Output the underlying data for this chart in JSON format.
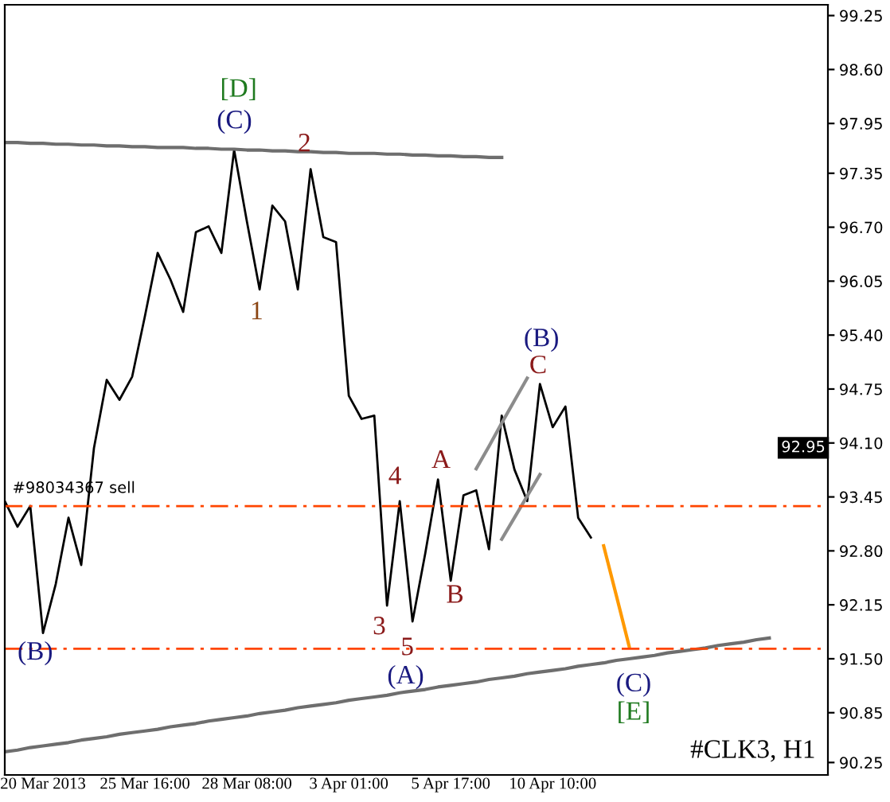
{
  "chart_data": {
    "type": "line",
    "categories": [
      null,
      null,
      null,
      "20 Mar 2013",
      null,
      null,
      null,
      null,
      null,
      null,
      null,
      "25 Mar 16:00",
      null,
      null,
      null,
      null,
      null,
      null,
      null,
      "28 Mar 08:00",
      null,
      null,
      null,
      null,
      null,
      null,
      null,
      "3 Apr 01:00",
      null,
      null,
      null,
      null,
      null,
      null,
      null,
      "5 Apr 17:00",
      null,
      null,
      null,
      null,
      null,
      null,
      null,
      "10 Apr 10:00",
      null,
      null,
      null,
      null,
      null,
      null,
      null,
      null,
      null,
      null,
      null,
      null,
      null,
      null,
      null,
      null,
      null,
      null,
      null,
      null,
      null
    ],
    "ylim": [
      90.1,
      99.38
    ],
    "yticks": [
      {
        "value": 99.25,
        "label": "99.25"
      },
      {
        "value": 98.6,
        "label": "98.60"
      },
      {
        "value": 97.95,
        "label": "97.95"
      },
      {
        "value": 97.35,
        "label": "97.35"
      },
      {
        "value": 96.7,
        "label": "96.70"
      },
      {
        "value": 96.05,
        "label": "96.05"
      },
      {
        "value": 95.4,
        "label": "95.40"
      },
      {
        "value": 94.75,
        "label": "94.75"
      },
      {
        "value": 94.1,
        "label": "94.10"
      },
      {
        "value": 93.45,
        "label": "93.45"
      },
      {
        "value": 92.8,
        "label": "92.80"
      },
      {
        "value": 92.15,
        "label": "92.15"
      },
      {
        "value": 91.5,
        "label": "91.50"
      },
      {
        "value": 90.85,
        "label": "90.85"
      },
      {
        "value": 90.25,
        "label": "90.25"
      }
    ],
    "grid": false,
    "series": [
      {
        "color": "#000000",
        "values": [
          93.4,
          93.09,
          93.34,
          91.81,
          92.4,
          93.2,
          92.63,
          94.04,
          94.86,
          94.62,
          94.9,
          95.63,
          96.39,
          96.07,
          95.68,
          96.64,
          96.71,
          96.39,
          97.63,
          96.77,
          95.95,
          96.96,
          96.77,
          95.95,
          97.4,
          96.58,
          96.52,
          94.67,
          94.39,
          94.43,
          92.14,
          93.4,
          91.95,
          92.77,
          93.66,
          92.44,
          93.47,
          93.53,
          92.82,
          94.43,
          93.78,
          93.4,
          94.81,
          94.29,
          94.54,
          93.2,
          92.96,
          null,
          null,
          null,
          null,
          null,
          null,
          null,
          null,
          null,
          null,
          null,
          null,
          null,
          null,
          null,
          null,
          null,
          null
        ]
      },
      {
        "color": "#6e6e6e",
        "values": [
          97.72,
          97.72,
          97.71,
          97.71,
          97.7,
          97.7,
          97.69,
          97.69,
          97.68,
          97.68,
          97.67,
          97.67,
          97.66,
          97.66,
          97.66,
          97.65,
          97.65,
          97.64,
          97.64,
          97.63,
          97.63,
          97.62,
          97.62,
          97.61,
          97.61,
          97.6,
          97.6,
          97.59,
          97.59,
          97.59,
          97.58,
          97.58,
          97.57,
          97.57,
          97.56,
          97.56,
          97.55,
          97.55,
          97.54,
          97.54,
          null,
          null,
          null,
          null,
          null,
          null,
          null,
          null,
          null,
          null,
          null,
          null,
          null,
          null,
          null,
          null,
          null,
          null,
          null,
          null,
          null,
          null,
          null,
          null,
          null
        ]
      },
      {
        "color": "#6e6e6e",
        "values": [
          90.38,
          90.4,
          90.43,
          90.45,
          90.47,
          90.49,
          90.52,
          90.54,
          90.56,
          90.59,
          90.61,
          90.63,
          90.65,
          90.68,
          90.7,
          90.72,
          90.75,
          90.77,
          90.79,
          90.81,
          90.84,
          90.86,
          90.88,
          90.91,
          90.93,
          90.95,
          90.97,
          91.0,
          91.02,
          91.04,
          91.06,
          91.09,
          91.11,
          91.13,
          91.16,
          91.18,
          91.2,
          91.22,
          91.25,
          91.27,
          91.29,
          91.32,
          91.34,
          91.36,
          91.38,
          91.41,
          91.43,
          91.45,
          91.48,
          91.5,
          91.52,
          91.54,
          91.57,
          91.59,
          91.61,
          91.63,
          91.66,
          91.68,
          91.7,
          91.73,
          91.75,
          null,
          null,
          null,
          null
        ]
      },
      {
        "color": "#8c8c8c",
        "values": [
          null,
          null,
          null,
          null,
          null,
          null,
          null,
          null,
          null,
          null,
          null,
          null,
          null,
          null,
          null,
          null,
          null,
          null,
          null,
          null,
          null,
          null,
          null,
          null,
          null,
          null,
          null,
          null,
          null,
          null,
          null,
          null,
          null,
          null,
          null,
          null,
          null,
          93.79,
          94.06,
          94.34,
          94.61,
          94.88,
          null,
          null,
          null,
          null,
          null,
          null,
          null,
          null,
          null,
          null,
          null,
          null,
          null,
          null,
          null,
          null,
          null,
          null,
          null,
          null,
          null,
          null,
          null
        ]
      },
      {
        "color": "#8c8c8c",
        "values": [
          null,
          null,
          null,
          null,
          null,
          null,
          null,
          null,
          null,
          null,
          null,
          null,
          null,
          null,
          null,
          null,
          null,
          null,
          null,
          null,
          null,
          null,
          null,
          null,
          null,
          null,
          null,
          null,
          null,
          null,
          null,
          null,
          null,
          null,
          null,
          null,
          null,
          null,
          null,
          92.94,
          93.2,
          93.46,
          93.72,
          null,
          null,
          null,
          null,
          null,
          null,
          null,
          null,
          null,
          null,
          null,
          null,
          null,
          null,
          null,
          null,
          null,
          null,
          null,
          null,
          null,
          null
        ]
      },
      {
        "color": "#ff9900",
        "values": [
          null,
          null,
          null,
          null,
          null,
          null,
          null,
          null,
          null,
          null,
          null,
          null,
          null,
          null,
          null,
          null,
          null,
          null,
          null,
          null,
          null,
          null,
          null,
          null,
          null,
          null,
          null,
          null,
          null,
          null,
          null,
          null,
          null,
          null,
          null,
          null,
          null,
          null,
          null,
          null,
          null,
          null,
          null,
          null,
          null,
          null,
          null,
          92.86,
          92.26,
          91.65,
          null,
          null,
          null,
          null,
          null,
          null,
          null,
          null,
          null,
          null,
          null,
          null,
          null,
          null,
          null
        ]
      }
    ],
    "ref_lines": [
      {
        "axis": "y",
        "value": 93.34,
        "label": "#98034367 sell",
        "color": "#ff4500",
        "line_style": "dashdot"
      },
      {
        "axis": "y",
        "value": 91.62,
        "label": null,
        "color": "#ff4500",
        "line_style": "dashdot"
      }
    ],
    "annotations": [
      "[D]",
      "(C)",
      "2",
      "1",
      "(B)",
      "C",
      "4",
      "A",
      "B",
      "3",
      "5",
      "(A)",
      "(B)",
      "(C)",
      "[E]",
      "92.95",
      "#CLK3, H1"
    ]
  }
}
